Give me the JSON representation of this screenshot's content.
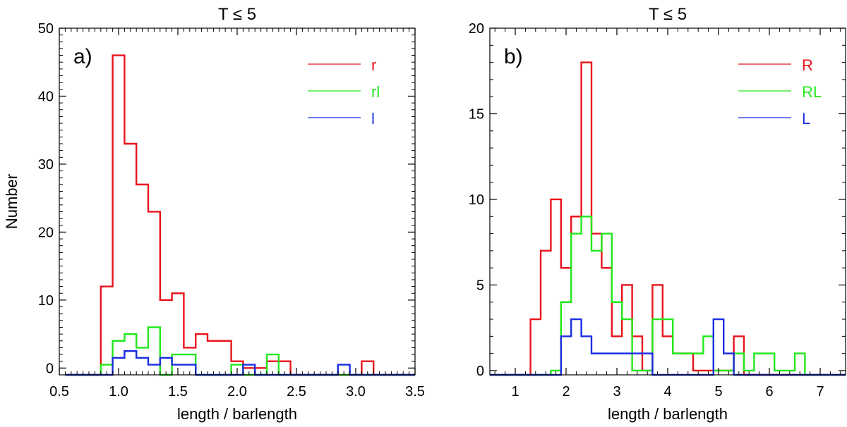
{
  "chart_data": [
    {
      "type": "histogram",
      "panel_label": "a)",
      "title": "T ≤ 5",
      "xlabel": "length / barlength",
      "ylabel": "Number",
      "xlim": [
        0.5,
        3.5
      ],
      "ylim": [
        -1,
        50
      ],
      "xticks": [
        0.5,
        1.0,
        1.5,
        2.0,
        2.5,
        3.0,
        3.5
      ],
      "xtick_labels": [
        "0.5",
        "1.0",
        "1.5",
        "2.0",
        "2.5",
        "3.0",
        "3.5"
      ],
      "yticks": [
        0,
        10,
        20,
        30,
        40,
        50
      ],
      "ytick_labels": [
        "0",
        "10",
        "20",
        "30",
        "40",
        "50"
      ],
      "legend_position": "top-right",
      "series": [
        {
          "name": "r",
          "color": "#e8141c",
          "x": [
            0.55,
            0.85,
            0.95,
            1.05,
            1.15,
            1.25,
            1.35,
            1.45,
            1.55,
            1.65,
            1.75,
            1.85,
            1.95,
            2.05,
            2.15,
            2.25,
            2.35,
            2.45,
            2.55,
            2.65,
            2.75,
            2.85,
            2.95,
            3.05,
            3.15,
            3.25,
            3.35,
            3.45
          ],
          "y": [
            -1,
            12,
            46,
            33,
            27,
            23,
            10,
            11,
            3,
            5,
            4,
            4,
            1,
            0,
            0,
            1,
            1,
            -1,
            -1,
            -1,
            -1,
            -1,
            -1,
            1,
            -1,
            -1,
            -1,
            -1
          ]
        },
        {
          "name": "rl",
          "color": "#22e81c",
          "x": [
            0.55,
            0.85,
            0.95,
            1.05,
            1.15,
            1.25,
            1.35,
            1.45,
            1.55,
            1.65,
            1.75,
            1.85,
            1.95,
            2.05,
            2.15,
            2.25,
            2.35,
            2.45,
            2.55,
            2.65,
            2.75,
            2.85,
            2.95,
            3.05,
            3.15,
            3.25,
            3.35,
            3.45
          ],
          "y": [
            -1,
            0.5,
            4,
            5,
            3,
            6,
            -1,
            2,
            2,
            -1,
            -1,
            -1,
            0.5,
            -1,
            -1,
            2,
            -1,
            -1,
            -1,
            -1,
            -1,
            -1,
            -1,
            -1,
            -1,
            -1,
            -1,
            -1
          ]
        },
        {
          "name": "l",
          "color": "#1c2ee0",
          "x": [
            0.55,
            0.85,
            0.95,
            1.05,
            1.15,
            1.25,
            1.35,
            1.45,
            1.55,
            1.65,
            1.75,
            1.85,
            1.95,
            2.05,
            2.15,
            2.25,
            2.35,
            2.45,
            2.55,
            2.65,
            2.75,
            2.85,
            2.95,
            3.05,
            3.15,
            3.25,
            3.35,
            3.45
          ],
          "y": [
            -1,
            -1,
            1.5,
            2.5,
            1.5,
            0.5,
            1.5,
            0.5,
            0.5,
            -1,
            -1,
            -1,
            -1,
            0.5,
            -1,
            -1,
            -1,
            -1,
            -1,
            -1,
            -1,
            0.5,
            -1,
            -1,
            -1,
            -1,
            -1,
            -1
          ]
        }
      ]
    },
    {
      "type": "histogram",
      "panel_label": "b)",
      "title": "T ≤ 5",
      "xlabel": "length / barlength",
      "ylabel": "",
      "xlim": [
        0.5,
        7.5
      ],
      "ylim": [
        -0.25,
        20
      ],
      "xticks": [
        1,
        2,
        3,
        4,
        5,
        6,
        7
      ],
      "xtick_labels": [
        "1",
        "2",
        "3",
        "4",
        "5",
        "6",
        "7"
      ],
      "yticks": [
        0,
        5,
        10,
        15,
        20
      ],
      "ytick_labels": [
        "0",
        "5",
        "10",
        "15",
        "20"
      ],
      "legend_position": "top-right",
      "series": [
        {
          "name": "R",
          "color": "#e8141c",
          "x": [
            0.5,
            1.3,
            1.5,
            1.7,
            1.9,
            2.1,
            2.3,
            2.5,
            2.7,
            2.9,
            3.1,
            3.3,
            3.5,
            3.7,
            3.9,
            4.1,
            4.3,
            4.5,
            4.7,
            4.9,
            5.1,
            5.3,
            5.5,
            7.5
          ],
          "y": [
            -0.25,
            3,
            7,
            10,
            6,
            9,
            18,
            8,
            6,
            2,
            5,
            2,
            0,
            5,
            2,
            1,
            1,
            0,
            0,
            0,
            0,
            2,
            -0.25,
            -0.25
          ]
        },
        {
          "name": "RL",
          "color": "#22e81c",
          "x": [
            0.5,
            1.7,
            1.9,
            2.1,
            2.3,
            2.5,
            2.7,
            2.9,
            3.1,
            3.3,
            3.5,
            3.7,
            3.9,
            4.1,
            4.3,
            4.5,
            4.7,
            4.9,
            5.1,
            5.3,
            5.5,
            5.7,
            5.9,
            6.1,
            6.3,
            6.5,
            6.7,
            7.5
          ],
          "y": [
            -0.25,
            0,
            4,
            8,
            9,
            7,
            8,
            4,
            3,
            0,
            0,
            3,
            3,
            1,
            1,
            1,
            2,
            0,
            0,
            1,
            0,
            1,
            1,
            0,
            0,
            1,
            -0.25,
            -0.25
          ]
        },
        {
          "name": "L",
          "color": "#1c2ee0",
          "x": [
            0.5,
            1.9,
            2.1,
            2.3,
            2.5,
            2.7,
            2.9,
            3.1,
            3.3,
            3.5,
            3.7,
            3.9,
            4.1,
            4.3,
            4.5,
            4.7,
            4.9,
            5.1,
            5.3,
            5.5,
            7.5
          ],
          "y": [
            -0.25,
            2,
            3,
            2,
            1,
            1,
            1,
            1,
            1,
            1,
            -0.25,
            -0.25,
            -0.25,
            -0.25,
            -0.25,
            -0.25,
            3,
            1,
            -0.25,
            -0.25,
            -0.25
          ]
        }
      ]
    }
  ]
}
